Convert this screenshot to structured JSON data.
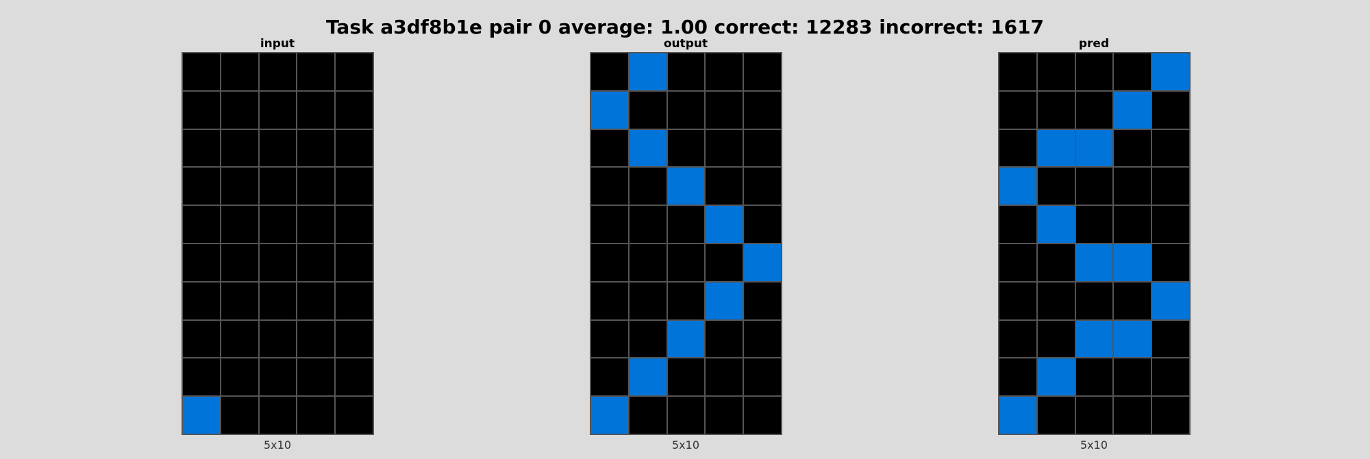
{
  "title": "Task a3df8b1e pair 0 average: 1.00 correct: 12283 incorrect: 1617",
  "palette": {
    "0": "#000000",
    "1": "#0074d9",
    "grid_line": "#555555",
    "background": "#dcdcdc"
  },
  "panels": [
    {
      "label": "input",
      "dims": "5x10",
      "grid": [
        [
          0,
          0,
          0,
          0,
          0
        ],
        [
          0,
          0,
          0,
          0,
          0
        ],
        [
          0,
          0,
          0,
          0,
          0
        ],
        [
          0,
          0,
          0,
          0,
          0
        ],
        [
          0,
          0,
          0,
          0,
          0
        ],
        [
          0,
          0,
          0,
          0,
          0
        ],
        [
          0,
          0,
          0,
          0,
          0
        ],
        [
          0,
          0,
          0,
          0,
          0
        ],
        [
          0,
          0,
          0,
          0,
          0
        ],
        [
          1,
          0,
          0,
          0,
          0
        ]
      ]
    },
    {
      "label": "output",
      "dims": "5x10",
      "grid": [
        [
          0,
          1,
          0,
          0,
          0
        ],
        [
          1,
          0,
          0,
          0,
          0
        ],
        [
          0,
          1,
          0,
          0,
          0
        ],
        [
          0,
          0,
          1,
          0,
          0
        ],
        [
          0,
          0,
          0,
          1,
          0
        ],
        [
          0,
          0,
          0,
          0,
          1
        ],
        [
          0,
          0,
          0,
          1,
          0
        ],
        [
          0,
          0,
          1,
          0,
          0
        ],
        [
          0,
          1,
          0,
          0,
          0
        ],
        [
          1,
          0,
          0,
          0,
          0
        ]
      ]
    },
    {
      "label": "pred",
      "dims": "5x10",
      "grid": [
        [
          0,
          0,
          0,
          0,
          1
        ],
        [
          0,
          0,
          0,
          1,
          0
        ],
        [
          0,
          1,
          1,
          0,
          0
        ],
        [
          1,
          0,
          0,
          0,
          0
        ],
        [
          0,
          1,
          0,
          0,
          0
        ],
        [
          0,
          0,
          1,
          1,
          0
        ],
        [
          0,
          0,
          0,
          0,
          1
        ],
        [
          0,
          0,
          1,
          1,
          0
        ],
        [
          0,
          1,
          0,
          0,
          0
        ],
        [
          1,
          0,
          0,
          0,
          0
        ]
      ]
    }
  ]
}
